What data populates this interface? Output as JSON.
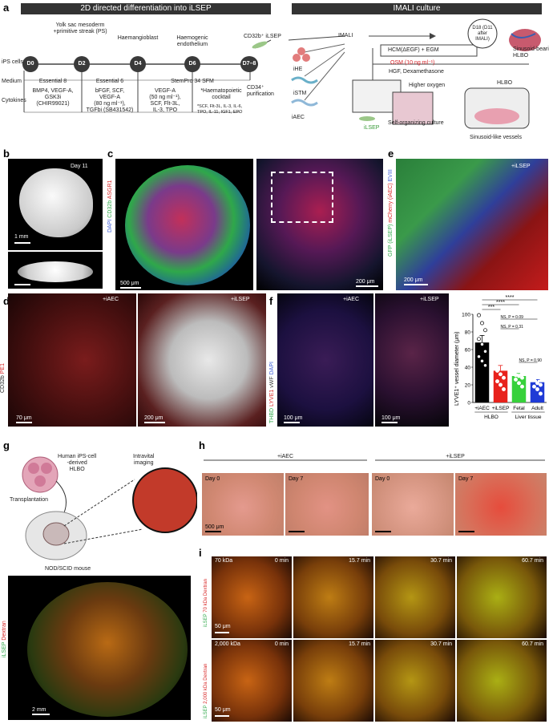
{
  "panel_labels": {
    "a": "a",
    "b": "b",
    "c": "c",
    "d": "d",
    "e": "e",
    "f": "f",
    "g": "g",
    "h": "h",
    "i": "i"
  },
  "panel_a": {
    "header_left": "2D directed differentiation into iLSEP",
    "header_right": "IMALI culture",
    "ips_cells": "iPS cells",
    "stage_top": {
      "d2": "Yolk sac mesoderm\n+primitive streak (PS)",
      "d4": "Haemangioblast",
      "d6": "Haemogenic\nendothelium",
      "d78": "CD32b⁺ iLSEP"
    },
    "days": [
      "D0",
      "D2",
      "D4",
      "D6",
      "D7–8"
    ],
    "medium_label": "Medium",
    "cytokines_label": "Cytokines",
    "media": [
      "Essential 8",
      "Essential 6",
      "StemPro 34 SFM"
    ],
    "purification": "CD34⁺\npurification",
    "cytokines": [
      "BMP4, VEGF-A,\nGSK3i\n(CHIR99021)",
      "bFGF, SCF,\nVEGF-A\n(80 ng ml⁻¹),\nTGFbi (SB431542)",
      "VEGF-A\n(50 ng ml⁻¹),\nSCF, Flt-3L,\nIL-3, TPO",
      "*Haematopoietic\ncocktail"
    ],
    "cocktail_note": "*SCF, Flt-3L, IL-3, IL-6,\nTPO, IL-11, IGF1, EPO",
    "imali": "IMALI",
    "cells": [
      "iHE",
      "iSTM",
      "iAEC"
    ],
    "ilsep": "iLSEP",
    "d18": "D18 (D11\nafter\nIMALI)",
    "hcm": "HCM(ΔEGF) + EGM",
    "osm": "OSM (10 ng ml⁻¹)",
    "hgf": "HGF, Dexamethasone",
    "sinusoid_hlbo": "Sinusoid-bearing\nHLBO",
    "higher_oxygen": "Higher oxygen",
    "self_org": "Self-organizing culture",
    "hlbo": "HLBO",
    "sinusoid_vessels": "Sinusoid-like vessels",
    "osm_color": "#d6252a"
  },
  "panel_b": {
    "day": "Day 11",
    "scale": "1 mm"
  },
  "panel_c": {
    "stain": [
      "DAPI",
      "CD32b",
      "ASGR1"
    ],
    "scale_left": "500 μm",
    "scale_right": "200 μm"
  },
  "panel_e": {
    "stain": [
      "GFP (iLSEP)",
      "mCherry (iAEC)",
      "EVIII"
    ],
    "label": "+iLSEP",
    "scale": "200 μm"
  },
  "panel_d": {
    "stain": [
      "CD32b",
      "PE1"
    ],
    "left": "+iAEC",
    "right": "+iLSEP",
    "scale_left": "70 μm",
    "scale_right": "200 μm"
  },
  "panel_f": {
    "stain": [
      "THBD",
      "LYVE1",
      "vWF",
      "DAPI"
    ],
    "left": "+iAEC",
    "right": "+iLSEP",
    "scale_left": "100 μm",
    "scale_right": "100 μm"
  },
  "chart_data": {
    "type": "bar",
    "ylabel": "LYVE1⁺ vessel diameter (μm)",
    "ylim": [
      0,
      100
    ],
    "yticks": [
      0,
      20,
      40,
      60,
      80,
      100
    ],
    "categories": [
      "+iAEC",
      "+iLSEP",
      "Fetal",
      "Adult"
    ],
    "groups": [
      {
        "label": "HLBO",
        "span": [
          0,
          1
        ]
      },
      {
        "label": "Liver tissue",
        "span": [
          2,
          3
        ]
      }
    ],
    "values": [
      68,
      36,
      30,
      23
    ],
    "errors": [
      8,
      6,
      3,
      3
    ],
    "colors": [
      "#000000",
      "#e8221c",
      "#37d13b",
      "#1f3bd6"
    ],
    "points": [
      [
        99,
        90,
        82,
        72,
        66,
        58,
        52,
        47,
        42
      ],
      [
        62,
        47,
        40,
        36,
        32,
        28,
        24,
        20,
        15
      ],
      [
        40,
        36,
        33,
        31,
        30,
        28,
        26,
        22,
        18
      ],
      [
        48,
        40,
        30,
        26,
        22,
        20,
        18,
        15,
        10
      ]
    ],
    "significance": [
      {
        "from": 0,
        "to": 3,
        "label": "****"
      },
      {
        "from": 0,
        "to": 2,
        "label": "****"
      },
      {
        "from": 0,
        "to": 1,
        "label": "***"
      },
      {
        "from": 1,
        "to": 3,
        "label": "NS, P = 0.09"
      },
      {
        "from": 1,
        "to": 2,
        "label": "NS, P = 0.31"
      },
      {
        "from": 2,
        "to": 3,
        "label": "NS, P = 0.90"
      }
    ]
  },
  "panel_g": {
    "human": "Human iPS-cell\n-derived\nHLBO",
    "intravital": "Intravital\nimaging",
    "transplantation": "Transplantation",
    "mouse": "NOD/SCID mouse",
    "stain": [
      "iLSEP",
      "Dextran"
    ],
    "scale": "2 mm"
  },
  "panel_h": {
    "iaec": "+iAEC",
    "ilsep": "+iLSEP",
    "days": [
      "Day 0",
      "Day 7",
      "Day 0",
      "Day 7"
    ],
    "scale": "500 μm"
  },
  "panel_i": {
    "rows": [
      {
        "label": "70 kDa",
        "stain": "iLSEP 70 kDa Dextran",
        "scale": "50 μm"
      },
      {
        "label": "2,000 kDa",
        "stain": "iLSEP 2,000 kDa Dextran",
        "scale": "50 μm"
      }
    ],
    "times": [
      "0 min",
      "15.7 min",
      "30.7 min",
      "60.7 min"
    ]
  }
}
